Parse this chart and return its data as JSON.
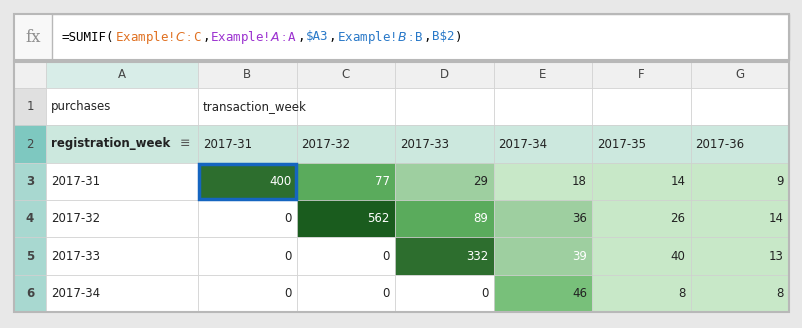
{
  "formula_parts": [
    {
      "text": "=SUMIF(",
      "color": "#000000"
    },
    {
      "text": "Example!$C:$C",
      "color": "#e07020"
    },
    {
      "text": ",",
      "color": "#000000"
    },
    {
      "text": "Example!$A:$A",
      "color": "#9b30d0"
    },
    {
      "text": ",",
      "color": "#000000"
    },
    {
      "text": "$A3",
      "color": "#2878c8"
    },
    {
      "text": ",",
      "color": "#000000"
    },
    {
      "text": "Example!$B:$B",
      "color": "#2878c8"
    },
    {
      "text": ",",
      "color": "#000000"
    },
    {
      "text": "B$2",
      "color": "#2878c8"
    },
    {
      "text": ")",
      "color": "#000000"
    }
  ],
  "col_headers": [
    "",
    "A",
    "B",
    "C",
    "D",
    "E",
    "F",
    "G"
  ],
  "row_labels": [
    "1",
    "2",
    "3",
    "4",
    "5",
    "6"
  ],
  "grid_data": [
    [
      "purchases",
      "transaction_week",
      "",
      "",
      "",
      "",
      ""
    ],
    [
      "registration_week",
      "2017-31",
      "2017-32",
      "2017-33",
      "2017-34",
      "2017-35",
      "2017-36"
    ],
    [
      "2017-31",
      "400",
      "77",
      "29",
      "18",
      "14",
      "9"
    ],
    [
      "2017-32",
      "0",
      "562",
      "89",
      "36",
      "26",
      "14"
    ],
    [
      "2017-33",
      "0",
      "0",
      "332",
      "39",
      "40",
      "13"
    ],
    [
      "2017-34",
      "0",
      "0",
      "0",
      "46",
      "8",
      "8"
    ]
  ],
  "cell_colors": {
    "0_0": "#ffffff",
    "0_1": "#ffffff",
    "0_2": "#ffffff",
    "0_3": "#ffffff",
    "0_4": "#ffffff",
    "0_5": "#ffffff",
    "0_6": "#ffffff",
    "1_0": "#cce8de",
    "1_1": "#cce8de",
    "1_2": "#cce8de",
    "1_3": "#cce8de",
    "1_4": "#cce8de",
    "1_5": "#cce8de",
    "1_6": "#cce8de",
    "2_0": "#ffffff",
    "2_1": "#2d6e2e",
    "2_2": "#5aab5c",
    "2_3": "#9ecfa0",
    "2_4": "#c8e8c8",
    "2_5": "#c8e8c8",
    "2_6": "#c8e8c8",
    "3_0": "#ffffff",
    "3_1": "#ffffff",
    "3_2": "#1a5c1e",
    "3_3": "#5aab5c",
    "3_4": "#9ecfa0",
    "3_5": "#c8e8c8",
    "3_6": "#c8e8c8",
    "4_0": "#ffffff",
    "4_1": "#ffffff",
    "4_2": "#ffffff",
    "4_3": "#2d6e2e",
    "4_4": "#9ecfa0",
    "4_5": "#c8e8c8",
    "4_6": "#c8e8c8",
    "5_0": "#ffffff",
    "5_1": "#ffffff",
    "5_2": "#ffffff",
    "5_3": "#ffffff",
    "5_4": "#78c07a",
    "5_5": "#c8e8c8",
    "5_6": "#c8e8c8"
  },
  "text_colors": {
    "2_1": "#ffffff",
    "2_2": "#ffffff",
    "3_2": "#ffffff",
    "3_3": "#ffffff",
    "4_3": "#ffffff",
    "4_4": "#ffffff"
  },
  "row_num_colors": [
    "#e0e0e0",
    "#7ec8c0",
    "#a8d8d0",
    "#a8d8d0",
    "#a8d8d0",
    "#a8d8d0"
  ],
  "col_A_header_bg": "#d8ede8",
  "col_header_bg": "#f0f0f0",
  "formula_bar_bg": "#ffffff",
  "fx_area_bg": "#f8f8f8",
  "border_color": "#b8b8b8",
  "cell_border_color": "#d0d0d0",
  "selected_border_color": "#1565c0",
  "selected_cell": [
    2,
    1
  ],
  "outer_bg": "#e8e8e8"
}
